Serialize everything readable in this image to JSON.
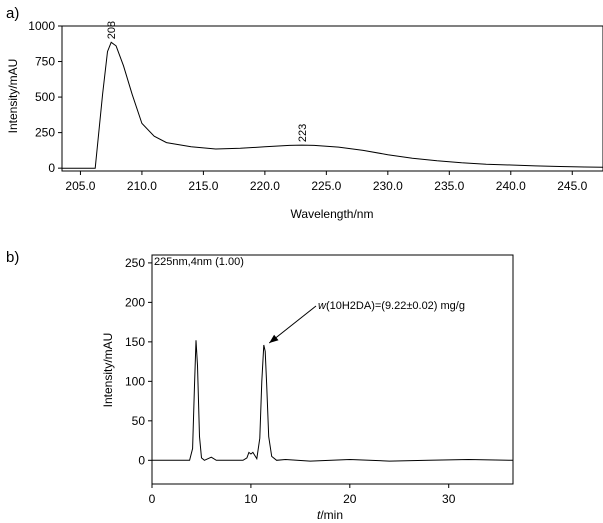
{
  "chart_data": [
    {
      "panel_label": "a)",
      "type": "line",
      "xlabel": "Wavelength/nm",
      "ylabel": "Intensity/mAU",
      "xlim": [
        203.5,
        247.5
      ],
      "ylim": [
        -20,
        1000
      ],
      "xticks": [
        "205.0",
        "210.0",
        "215.0",
        "220.0",
        "225.0",
        "230.0",
        "235.0",
        "240.0",
        "245.0"
      ],
      "xtick_values": [
        205,
        210,
        215,
        220,
        225,
        230,
        235,
        240,
        245
      ],
      "yticks": [
        "0",
        "250",
        "500",
        "750",
        "1000"
      ],
      "ytick_values": [
        0,
        250,
        500,
        750,
        1000
      ],
      "grid": false,
      "series": [
        {
          "x": [
            203.5,
            206.2,
            206.8,
            207.2,
            207.5,
            207.9,
            208.5,
            209.2,
            210.0,
            211.0,
            212.0,
            214.0,
            216.0,
            218.0,
            220.0,
            222.0,
            223.0,
            224.0,
            226.0,
            228.0,
            230.0,
            232.0,
            234.0,
            236.0,
            238.0,
            240.0,
            242.0,
            244.0,
            245.0,
            246.0,
            247.5
          ],
          "y": [
            0,
            0,
            520,
            820,
            885,
            860,
            720,
            520,
            315,
            225,
            180,
            150,
            135,
            140,
            150,
            160,
            162,
            160,
            148,
            125,
            95,
            70,
            52,
            38,
            28,
            22,
            16,
            12,
            10,
            8,
            6
          ]
        }
      ],
      "annotations": [
        {
          "text": "208",
          "x": 207.5,
          "y": 885
        },
        {
          "text": "223",
          "x": 223.0,
          "y": 162
        }
      ]
    },
    {
      "panel_label": "b)",
      "type": "line",
      "xlabel_italic": "t",
      "xlabel_rest": "/min",
      "ylabel": "Intensity/mAU",
      "xlim": [
        0,
        36.5
      ],
      "ylim": [
        -30,
        260
      ],
      "xticks": [
        "0",
        "10",
        "20",
        "30"
      ],
      "xtick_values": [
        0,
        10,
        20,
        30
      ],
      "yticks": [
        "0",
        "50",
        "100",
        "150",
        "200",
        "250"
      ],
      "ytick_values": [
        0,
        50,
        100,
        150,
        200,
        250
      ],
      "grid": false,
      "header_text": "225nm,4nm (1.00)",
      "series": [
        {
          "x": [
            0,
            3.8,
            4.1,
            4.3,
            4.45,
            4.6,
            4.8,
            5.0,
            5.3,
            6.0,
            6.5,
            9.2,
            9.6,
            9.8,
            10.0,
            10.2,
            10.4,
            10.6,
            10.9,
            11.1,
            11.3,
            11.45,
            11.6,
            11.8,
            12.1,
            12.6,
            13.5,
            16.0,
            20.0,
            24.0,
            28.0,
            32.0,
            36.5
          ],
          "y": [
            0,
            0,
            15,
            95,
            152,
            120,
            30,
            3,
            0,
            4,
            0,
            0,
            3,
            10,
            8,
            10,
            6,
            2,
            28,
            100,
            146,
            138,
            95,
            30,
            5,
            0,
            1,
            -1,
            1,
            -1,
            0,
            1,
            0
          ]
        }
      ],
      "annotation": {
        "text_italic": "w",
        "text_rest": "(10H2DA)=(9.22±0.02)  mg/g",
        "arrow_to_x": 11.45,
        "arrow_to_y": 146
      }
    }
  ]
}
